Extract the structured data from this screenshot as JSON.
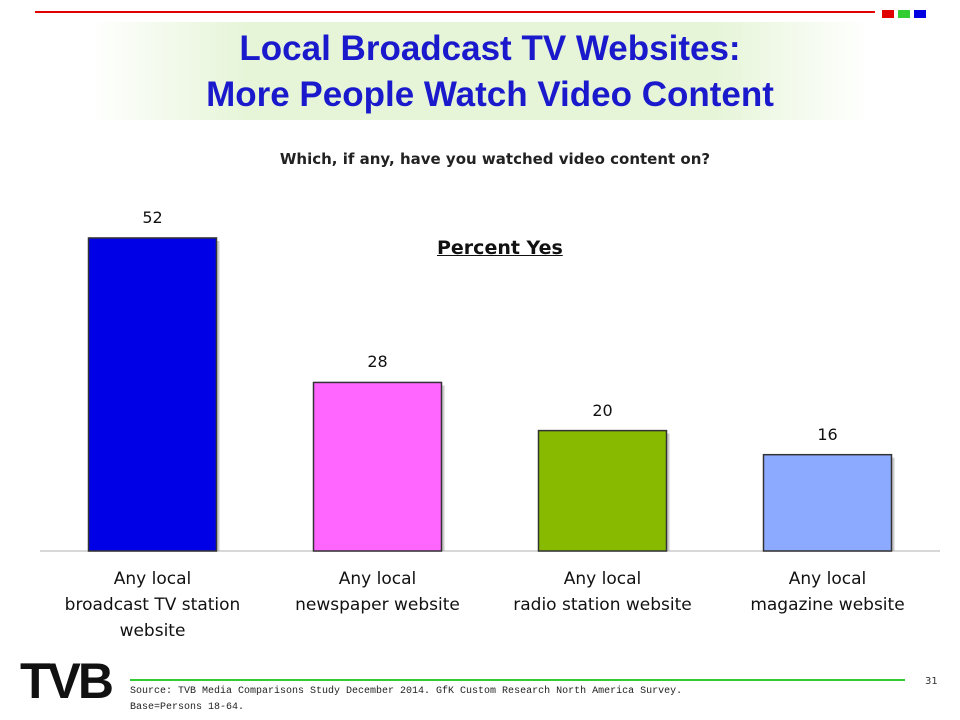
{
  "chart_data": {
    "type": "bar",
    "title": "Local Broadcast TV Websites:\nMore People Watch Video Content",
    "subtitle": "Which, if any, have you watched video content on?",
    "annotation": "Percent Yes",
    "categories": [
      "Any local\nbroadcast TV station\nwebsite",
      "Any local\nnewspaper website",
      "Any local\nradio station website",
      "Any local\nmagazine website"
    ],
    "values": [
      52,
      28,
      20,
      16
    ],
    "colors": [
      "#0000e6",
      "#ff66ff",
      "#88bb00",
      "#8caaff"
    ]
  },
  "footer": {
    "logo": "TVB",
    "source": "Source: TVB Media Comparisons Study December 2014. GfK Custom Research North America Survey.\nBase=Persons 18-64.",
    "page": "31"
  }
}
